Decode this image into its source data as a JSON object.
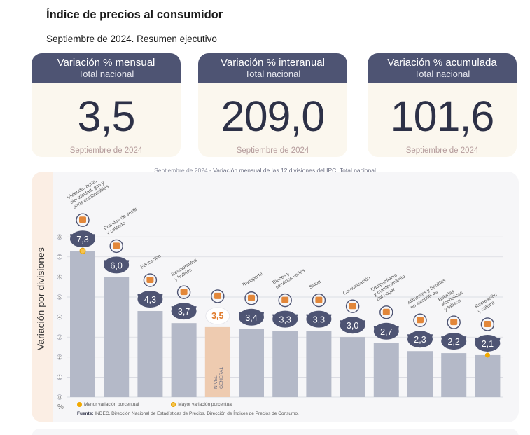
{
  "header": {
    "title": "Índice de precios al consumidor",
    "subtitle": "Septiembre de 2024. Resumen ejecutivo"
  },
  "cards": [
    {
      "title": "Variación % mensual",
      "scope": "Total nacional",
      "value": "3,5",
      "period": "Septiembre de 2024"
    },
    {
      "title": "Variación % interanual",
      "scope": "Total nacional",
      "value": "209,0",
      "period": "Septiembre de 2024"
    },
    {
      "title": "Variación % acumulada",
      "scope": "Total nacional",
      "value": "101,6",
      "period": "Septiembre de 2024"
    }
  ],
  "chart_caption": {
    "period": "Septiembre de 2024",
    "text": " - Variación mensual de las 12 divisiones del IPC. Total nacional"
  },
  "legend": {
    "min_label": "Menor variación porcentual",
    "max_label": "Mayor variación porcentual"
  },
  "source": {
    "label": "Fuente:",
    "text": " INDEC, Dirección Nacional de Estadísticas de Precios, Dirección de Índices de Precios de Consumo."
  },
  "colors": {
    "bar": "#b4b9c8",
    "highlight_bar": "#eecbb0",
    "highlight_text": "#e07b2c",
    "badge": "#4e5473",
    "max_marker": "#f2a900",
    "min_marker": "#f2a900"
  },
  "chart_data": {
    "type": "bar",
    "ylabel": "Variación por divisiones",
    "unit_label": "%",
    "ylim": [
      0,
      8
    ],
    "yticks": [
      "0",
      "1",
      "2",
      "3",
      "4",
      "5",
      "6",
      "7",
      "8"
    ],
    "grid": true,
    "categories": [
      "Vivienda, agua, electricidad, gas y otros combustibles",
      "Prendas de vestir y calzado",
      "Educación",
      "Restaurantes y hoteles",
      "Nivel general",
      "Transporte",
      "Bienes y servicios varios",
      "Salud",
      "Comunicación",
      "Equipamiento y mantenimiento del hogar",
      "Alimentos y bebidas no alcohólicas",
      "Bebidas alcohólicas y tabaco",
      "Recreación y cultura"
    ],
    "values": [
      7.3,
      6.0,
      4.3,
      3.7,
      3.5,
      3.4,
      3.3,
      3.3,
      3.0,
      2.7,
      2.3,
      2.2,
      2.1
    ],
    "value_labels": [
      "7,3",
      "6,0",
      "4,3",
      "3,7",
      "3,5",
      "3,4",
      "3,3",
      "3,3",
      "3,0",
      "2,7",
      "2,3",
      "2,2",
      "2,1"
    ],
    "label_lines": [
      [
        "Vivienda, agua,",
        "electricidad, gas y",
        "otros combustibles"
      ],
      [
        "Prendas de vestir",
        "y calzado"
      ],
      [
        "Educación"
      ],
      [
        "Restaurantes",
        "y hoteles"
      ],
      [],
      [
        "Transporte"
      ],
      [
        "Bienes y",
        "servicios varios"
      ],
      [
        "Salud"
      ],
      [
        "Comunicación"
      ],
      [
        "Equipamiento",
        "y mantenimiento",
        "del hogar"
      ],
      [
        "Alimentos y bebidas",
        "no alcohólicas"
      ],
      [
        "Bebidas",
        "alcohólicas",
        "y tabaco"
      ],
      [
        "Recreación",
        "y cultura"
      ]
    ],
    "inbar_label": [
      "NIVEL",
      "GENERAL"
    ],
    "highlight_index": 4,
    "max_index": 0,
    "min_index": 12,
    "icons": [
      "lightbulb-icon",
      "shirt-icon",
      "books-icon",
      "cutlery-icon",
      "basket-icon",
      "car-icon",
      "comb-icon",
      "medical-kit-icon",
      "phone-icon",
      "stove-icon",
      "food-icon",
      "bottle-icon",
      "umbrella-icon"
    ]
  }
}
